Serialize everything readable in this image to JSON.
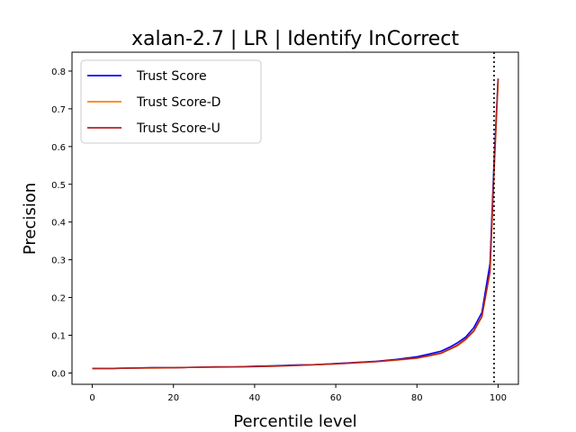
{
  "chart_data": {
    "type": "line",
    "title": "xalan-2.7 | LR | Identify InCorrect",
    "xlabel": "Percentile level",
    "ylabel": "Precision",
    "xlim": [
      -5,
      105
    ],
    "ylim": [
      -0.03,
      0.85
    ],
    "xticks": [
      0,
      20,
      40,
      60,
      80,
      100
    ],
    "yticks": [
      0.0,
      0.1,
      0.2,
      0.3,
      0.4,
      0.5,
      0.6,
      0.7,
      0.8
    ],
    "xtick_labels": [
      "0",
      "20",
      "40",
      "60",
      "80",
      "100"
    ],
    "ytick_labels": [
      "0.0",
      "0.1",
      "0.2",
      "0.3",
      "0.4",
      "0.5",
      "0.6",
      "0.7",
      "0.8"
    ],
    "legend_position": "top-left",
    "grid": false,
    "vline": {
      "x": 99,
      "style": "dotted",
      "color": "#000000"
    },
    "x": [
      0,
      5,
      10,
      15,
      20,
      25,
      30,
      35,
      40,
      45,
      50,
      55,
      60,
      65,
      70,
      75,
      80,
      83,
      86,
      88,
      90,
      92,
      94,
      96,
      98,
      99,
      100
    ],
    "series": [
      {
        "name": "Trust Score",
        "color": "#0000ff",
        "values": [
          0.012,
          0.012,
          0.013,
          0.014,
          0.014,
          0.015,
          0.016,
          0.016,
          0.018,
          0.019,
          0.021,
          0.022,
          0.025,
          0.028,
          0.031,
          0.036,
          0.043,
          0.05,
          0.058,
          0.068,
          0.08,
          0.095,
          0.12,
          0.16,
          0.29,
          0.56,
          0.78
        ]
      },
      {
        "name": "Trust Score-D",
        "color": "#ff7f0e",
        "values": [
          0.011,
          0.012,
          0.013,
          0.013,
          0.014,
          0.015,
          0.015,
          0.016,
          0.017,
          0.018,
          0.02,
          0.022,
          0.024,
          0.027,
          0.03,
          0.034,
          0.039,
          0.045,
          0.052,
          0.062,
          0.072,
          0.088,
          0.11,
          0.148,
          0.265,
          0.53,
          0.77
        ]
      },
      {
        "name": "Trust Score-U",
        "color": "#b22222",
        "values": [
          0.012,
          0.012,
          0.013,
          0.014,
          0.014,
          0.015,
          0.016,
          0.016,
          0.017,
          0.018,
          0.02,
          0.022,
          0.024,
          0.027,
          0.03,
          0.035,
          0.04,
          0.046,
          0.053,
          0.063,
          0.074,
          0.09,
          0.112,
          0.15,
          0.27,
          0.54,
          0.78
        ]
      }
    ]
  }
}
